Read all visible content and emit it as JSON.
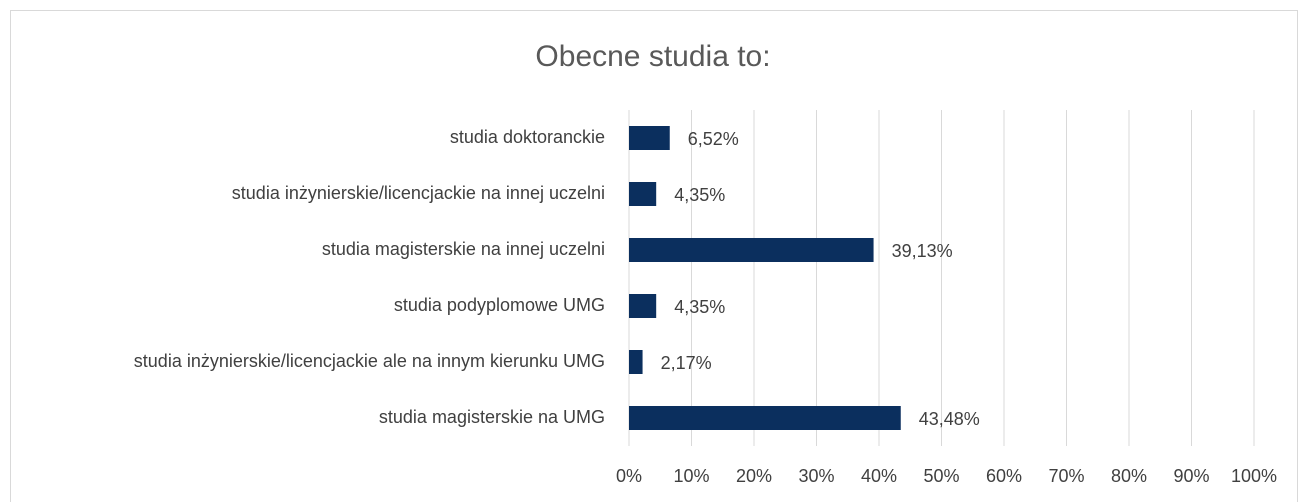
{
  "chart_data": {
    "type": "bar",
    "orientation": "horizontal",
    "title": "Obecne studia to:",
    "categories": [
      "studia doktoranckie",
      "studia inżynierskie/licencjackie na innej uczelni",
      "studia magisterskie na innej uczelni",
      "studia podyplomowe UMG",
      "studia inżynierskie/licencjackie ale na innym kierunku UMG",
      "studia magisterskie na UMG"
    ],
    "values": [
      6.52,
      4.35,
      39.13,
      4.35,
      2.17,
      43.48
    ],
    "value_labels": [
      "6,52%",
      "4,35%",
      "39,13%",
      "4,35%",
      "2,17%",
      "43,48%"
    ],
    "color": "#0b2f5e",
    "xlim": [
      0,
      100
    ],
    "xticks": [
      {
        "value": 0,
        "label": "0%"
      },
      {
        "value": 10,
        "label": "10%"
      },
      {
        "value": 20,
        "label": "20%"
      },
      {
        "value": 30,
        "label": "30%"
      },
      {
        "value": 40,
        "label": "40%"
      },
      {
        "value": 50,
        "label": "50%"
      },
      {
        "value": 60,
        "label": "60%"
      },
      {
        "value": 70,
        "label": "70%"
      },
      {
        "value": 80,
        "label": "80%"
      },
      {
        "value": 90,
        "label": "90%"
      },
      {
        "value": 100,
        "label": "100%"
      }
    ],
    "grid": true
  }
}
